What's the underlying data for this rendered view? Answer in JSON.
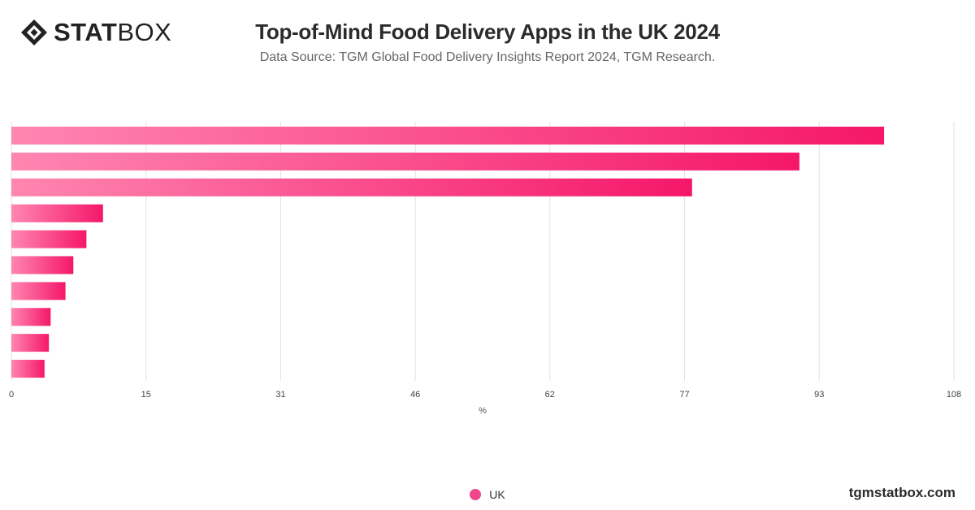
{
  "brand": {
    "logo_bold": "STAT",
    "logo_light": "BOX",
    "watermark": "tgmstatbox.com"
  },
  "colors": {
    "bar_start": "#ff86b0",
    "bar_end": "#f5176a",
    "grid": "#e2e2e2",
    "legend": "#f0468a"
  },
  "chart_data": {
    "type": "bar",
    "orientation": "horizontal",
    "title": "Top-of-Mind Food Delivery Apps in the UK 2024",
    "subtitle": "Data Source: TGM Global Food Delivery Insights Report 2024, TGM Research.",
    "xlabel": "%",
    "ylabel": "",
    "xlim": [
      0,
      108
    ],
    "x_ticks": [
      "0",
      "15",
      "31",
      "46",
      "62",
      "77",
      "93",
      "108"
    ],
    "x_tick_values": [
      0,
      15.43,
      30.86,
      46.29,
      61.71,
      77.14,
      92.57,
      108
    ],
    "grid": "vertical",
    "legend": "bottom-center",
    "categories": [
      "",
      "",
      "",
      "",
      "",
      "",
      "",
      "",
      "",
      ""
    ],
    "series": [
      {
        "name": "UK",
        "values": [
          100,
          90.3,
          78,
          10.5,
          8.6,
          7.1,
          6.2,
          4.5,
          4.3,
          3.8
        ]
      }
    ]
  }
}
